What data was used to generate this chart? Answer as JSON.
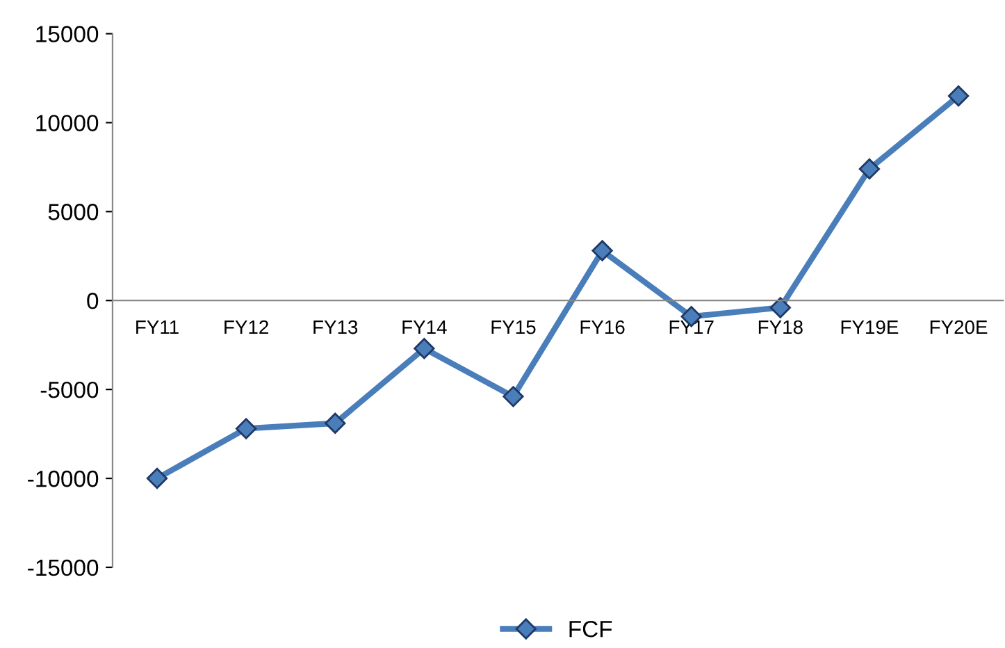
{
  "chart_data": {
    "type": "line",
    "categories": [
      "FY11",
      "FY12",
      "FY13",
      "FY14",
      "FY15",
      "FY16",
      "FY17",
      "FY18",
      "FY19E",
      "FY20E"
    ],
    "series": [
      {
        "name": "FCF",
        "color": "#4a7ebb",
        "values": [
          -10000,
          -7200,
          -6900,
          -2700,
          -5400,
          2800,
          -900,
          -400,
          7400,
          11500
        ]
      }
    ],
    "ylim": [
      -15000,
      15000
    ],
    "yticks": [
      -15000,
      -10000,
      -5000,
      0,
      5000,
      10000,
      15000
    ],
    "marker": "diamond",
    "grid": false,
    "legend": "bottom"
  }
}
